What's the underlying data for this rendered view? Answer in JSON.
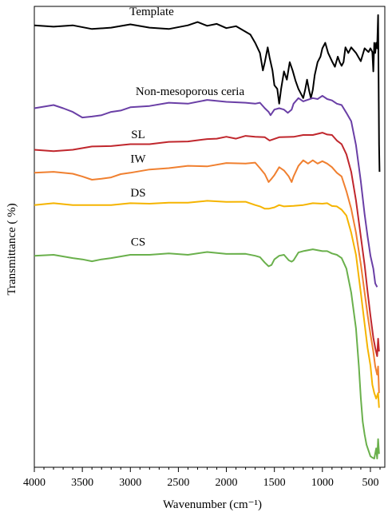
{
  "chart_data": {
    "type": "line",
    "xlabel": "Wavenumber (cm⁻¹)",
    "ylabel": "Transmittance ( %)",
    "xlim": [
      4000,
      350
    ],
    "x_reversed": true,
    "y_ticks_shown": false,
    "grid": false,
    "x_ticks": [
      4000,
      3500,
      3000,
      2500,
      2000,
      1500,
      1000,
      500
    ],
    "series": [
      {
        "name": "Template",
        "color": "#000000",
        "points": [
          [
            4000,
            96
          ],
          [
            3800,
            95.5
          ],
          [
            3600,
            96
          ],
          [
            3400,
            95
          ],
          [
            3200,
            95.5
          ],
          [
            3000,
            96
          ],
          [
            2800,
            95.5
          ],
          [
            2600,
            95
          ],
          [
            2400,
            96
          ],
          [
            2300,
            96.5
          ],
          [
            2200,
            96
          ],
          [
            2100,
            96
          ],
          [
            2000,
            95.5
          ],
          [
            1900,
            95.5
          ],
          [
            1750,
            94
          ],
          [
            1700,
            92
          ],
          [
            1650,
            90
          ],
          [
            1620,
            86
          ],
          [
            1600,
            88
          ],
          [
            1570,
            91
          ],
          [
            1550,
            89
          ],
          [
            1520,
            86
          ],
          [
            1500,
            83
          ],
          [
            1470,
            82
          ],
          [
            1450,
            79
          ],
          [
            1430,
            82
          ],
          [
            1400,
            86
          ],
          [
            1370,
            84
          ],
          [
            1340,
            88
          ],
          [
            1310,
            86
          ],
          [
            1280,
            84
          ],
          [
            1250,
            82
          ],
          [
            1220,
            81
          ],
          [
            1200,
            80
          ],
          [
            1180,
            82
          ],
          [
            1160,
            84
          ],
          [
            1140,
            82
          ],
          [
            1120,
            80
          ],
          [
            1100,
            82
          ],
          [
            1080,
            85
          ],
          [
            1050,
            88
          ],
          [
            1020,
            89
          ],
          [
            1000,
            91
          ],
          [
            970,
            92
          ],
          [
            940,
            90
          ],
          [
            900,
            88
          ],
          [
            870,
            87
          ],
          [
            840,
            89
          ],
          [
            820,
            88
          ],
          [
            800,
            87
          ],
          [
            780,
            88
          ],
          [
            760,
            91
          ],
          [
            730,
            90
          ],
          [
            700,
            91
          ],
          [
            650,
            90
          ],
          [
            600,
            88
          ],
          [
            560,
            91
          ],
          [
            520,
            90
          ],
          [
            500,
            91
          ],
          [
            480,
            90
          ],
          [
            470,
            86
          ],
          [
            460,
            92
          ],
          [
            450,
            90
          ],
          [
            440,
            92
          ],
          [
            430,
            91
          ],
          [
            420,
            98
          ],
          [
            410,
            70
          ],
          [
            405,
            64
          ]
        ]
      },
      {
        "name": "Non-mesoporous ceria",
        "color": "#6a3fa6",
        "points": [
          [
            4000,
            78
          ],
          [
            3800,
            78.5
          ],
          [
            3700,
            78
          ],
          [
            3600,
            77
          ],
          [
            3500,
            76
          ],
          [
            3400,
            76
          ],
          [
            3300,
            76.5
          ],
          [
            3200,
            77
          ],
          [
            3100,
            77.5
          ],
          [
            3000,
            78
          ],
          [
            2800,
            78.5
          ],
          [
            2600,
            79
          ],
          [
            2400,
            79
          ],
          [
            2200,
            79.5
          ],
          [
            2000,
            79.5
          ],
          [
            1800,
            79
          ],
          [
            1700,
            79
          ],
          [
            1650,
            79
          ],
          [
            1600,
            78
          ],
          [
            1560,
            77
          ],
          [
            1540,
            76.5
          ],
          [
            1500,
            77.5
          ],
          [
            1450,
            78
          ],
          [
            1400,
            77.5
          ],
          [
            1360,
            77
          ],
          [
            1320,
            77.5
          ],
          [
            1300,
            79
          ],
          [
            1250,
            80
          ],
          [
            1200,
            79.5
          ],
          [
            1100,
            80
          ],
          [
            1050,
            80
          ],
          [
            1000,
            80.5
          ],
          [
            950,
            80
          ],
          [
            900,
            79.5
          ],
          [
            850,
            79
          ],
          [
            800,
            78.5
          ],
          [
            750,
            77
          ],
          [
            700,
            75
          ],
          [
            650,
            70
          ],
          [
            600,
            62
          ],
          [
            560,
            55
          ],
          [
            530,
            50
          ],
          [
            500,
            46
          ],
          [
            470,
            43
          ],
          [
            450,
            40
          ],
          [
            430,
            39
          ]
        ]
      },
      {
        "name": "SL",
        "color": "#c0272d",
        "points": [
          [
            4000,
            69
          ],
          [
            3800,
            68.5
          ],
          [
            3600,
            69
          ],
          [
            3400,
            69.5
          ],
          [
            3200,
            69.8
          ],
          [
            3000,
            70
          ],
          [
            2800,
            70.2
          ],
          [
            2600,
            70.5
          ],
          [
            2400,
            70.8
          ],
          [
            2200,
            71
          ],
          [
            2100,
            71.5
          ],
          [
            2000,
            71.5
          ],
          [
            1900,
            71.5
          ],
          [
            1800,
            71.8
          ],
          [
            1700,
            71.8
          ],
          [
            1600,
            71.5
          ],
          [
            1550,
            71
          ],
          [
            1450,
            71.5
          ],
          [
            1300,
            71.8
          ],
          [
            1200,
            72
          ],
          [
            1100,
            72.2
          ],
          [
            1000,
            72.5
          ],
          [
            950,
            72.3
          ],
          [
            900,
            72
          ],
          [
            850,
            71
          ],
          [
            800,
            70
          ],
          [
            750,
            68
          ],
          [
            700,
            64
          ],
          [
            650,
            58
          ],
          [
            600,
            50
          ],
          [
            560,
            44
          ],
          [
            530,
            38
          ],
          [
            500,
            33
          ],
          [
            470,
            28
          ],
          [
            450,
            26
          ],
          [
            430,
            24
          ],
          [
            420,
            28
          ],
          [
            410,
            25
          ]
        ]
      },
      {
        "name": "IW",
        "color": "#f08030",
        "points": [
          [
            4000,
            64
          ],
          [
            3800,
            64
          ],
          [
            3600,
            63.8
          ],
          [
            3500,
            63
          ],
          [
            3400,
            62.5
          ],
          [
            3300,
            62.5
          ],
          [
            3200,
            63
          ],
          [
            3100,
            63.5
          ],
          [
            3000,
            64
          ],
          [
            2800,
            64.5
          ],
          [
            2600,
            65
          ],
          [
            2400,
            65.3
          ],
          [
            2200,
            65.5
          ],
          [
            2000,
            65.8
          ],
          [
            1800,
            66
          ],
          [
            1700,
            66
          ],
          [
            1650,
            65
          ],
          [
            1600,
            63.5
          ],
          [
            1560,
            62
          ],
          [
            1530,
            62.5
          ],
          [
            1500,
            63.5
          ],
          [
            1450,
            65
          ],
          [
            1400,
            64.5
          ],
          [
            1350,
            63
          ],
          [
            1320,
            62
          ],
          [
            1300,
            63
          ],
          [
            1250,
            65.5
          ],
          [
            1200,
            66.5
          ],
          [
            1150,
            66
          ],
          [
            1100,
            66.5
          ],
          [
            1050,
            66
          ],
          [
            1000,
            66.3
          ],
          [
            950,
            66
          ],
          [
            900,
            65
          ],
          [
            850,
            64
          ],
          [
            800,
            63
          ],
          [
            750,
            60
          ],
          [
            700,
            56
          ],
          [
            650,
            51
          ],
          [
            600,
            44
          ],
          [
            560,
            38
          ],
          [
            530,
            33
          ],
          [
            500,
            29
          ],
          [
            470,
            25
          ],
          [
            450,
            22
          ],
          [
            430,
            20
          ],
          [
            420,
            22
          ],
          [
            410,
            16
          ]
        ]
      },
      {
        "name": "DS",
        "color": "#f5b400",
        "points": [
          [
            4000,
            57
          ],
          [
            3800,
            57.2
          ],
          [
            3600,
            57
          ],
          [
            3400,
            56.8
          ],
          [
            3200,
            57
          ],
          [
            3000,
            57.2
          ],
          [
            2800,
            57.3
          ],
          [
            2600,
            57.3
          ],
          [
            2400,
            57.5
          ],
          [
            2200,
            57.6
          ],
          [
            2000,
            57.8
          ],
          [
            1800,
            57.5
          ],
          [
            1700,
            57
          ],
          [
            1650,
            56.5
          ],
          [
            1600,
            56.2
          ],
          [
            1560,
            56
          ],
          [
            1500,
            56.5
          ],
          [
            1450,
            56.8
          ],
          [
            1400,
            56.7
          ],
          [
            1300,
            56.6
          ],
          [
            1200,
            57
          ],
          [
            1100,
            57.2
          ],
          [
            1000,
            57.3
          ],
          [
            950,
            57.2
          ],
          [
            900,
            56.8
          ],
          [
            850,
            56.5
          ],
          [
            800,
            56
          ],
          [
            750,
            54.5
          ],
          [
            700,
            51
          ],
          [
            650,
            46
          ],
          [
            600,
            38
          ],
          [
            560,
            31
          ],
          [
            530,
            26
          ],
          [
            500,
            22
          ],
          [
            480,
            18
          ],
          [
            460,
            16
          ],
          [
            440,
            15
          ],
          [
            420,
            16
          ],
          [
            410,
            13
          ]
        ]
      },
      {
        "name": "CS",
        "color": "#6ab04c",
        "points": [
          [
            4000,
            46
          ],
          [
            3800,
            46
          ],
          [
            3600,
            45.5
          ],
          [
            3500,
            45
          ],
          [
            3400,
            44.8
          ],
          [
            3300,
            45
          ],
          [
            3200,
            45.5
          ],
          [
            3000,
            46
          ],
          [
            2800,
            46.2
          ],
          [
            2600,
            46.3
          ],
          [
            2400,
            46.2
          ],
          [
            2200,
            46.5
          ],
          [
            2000,
            46.5
          ],
          [
            1800,
            46.2
          ],
          [
            1700,
            46
          ],
          [
            1650,
            45.5
          ],
          [
            1600,
            44.5
          ],
          [
            1560,
            43.5
          ],
          [
            1530,
            44
          ],
          [
            1500,
            45
          ],
          [
            1450,
            46
          ],
          [
            1400,
            46
          ],
          [
            1350,
            45
          ],
          [
            1320,
            44.5
          ],
          [
            1300,
            45
          ],
          [
            1250,
            46.5
          ],
          [
            1200,
            47
          ],
          [
            1100,
            47.2
          ],
          [
            1000,
            47
          ],
          [
            950,
            46.8
          ],
          [
            900,
            46.5
          ],
          [
            850,
            46
          ],
          [
            800,
            45.5
          ],
          [
            750,
            43
          ],
          [
            700,
            38
          ],
          [
            650,
            30
          ],
          [
            620,
            22
          ],
          [
            600,
            15
          ],
          [
            580,
            10
          ],
          [
            560,
            7
          ],
          [
            540,
            5
          ],
          [
            520,
            3.5
          ],
          [
            500,
            2.5
          ],
          [
            480,
            2
          ],
          [
            460,
            2
          ],
          [
            440,
            4
          ],
          [
            430,
            2
          ],
          [
            420,
            6
          ],
          [
            410,
            3
          ]
        ]
      }
    ]
  }
}
